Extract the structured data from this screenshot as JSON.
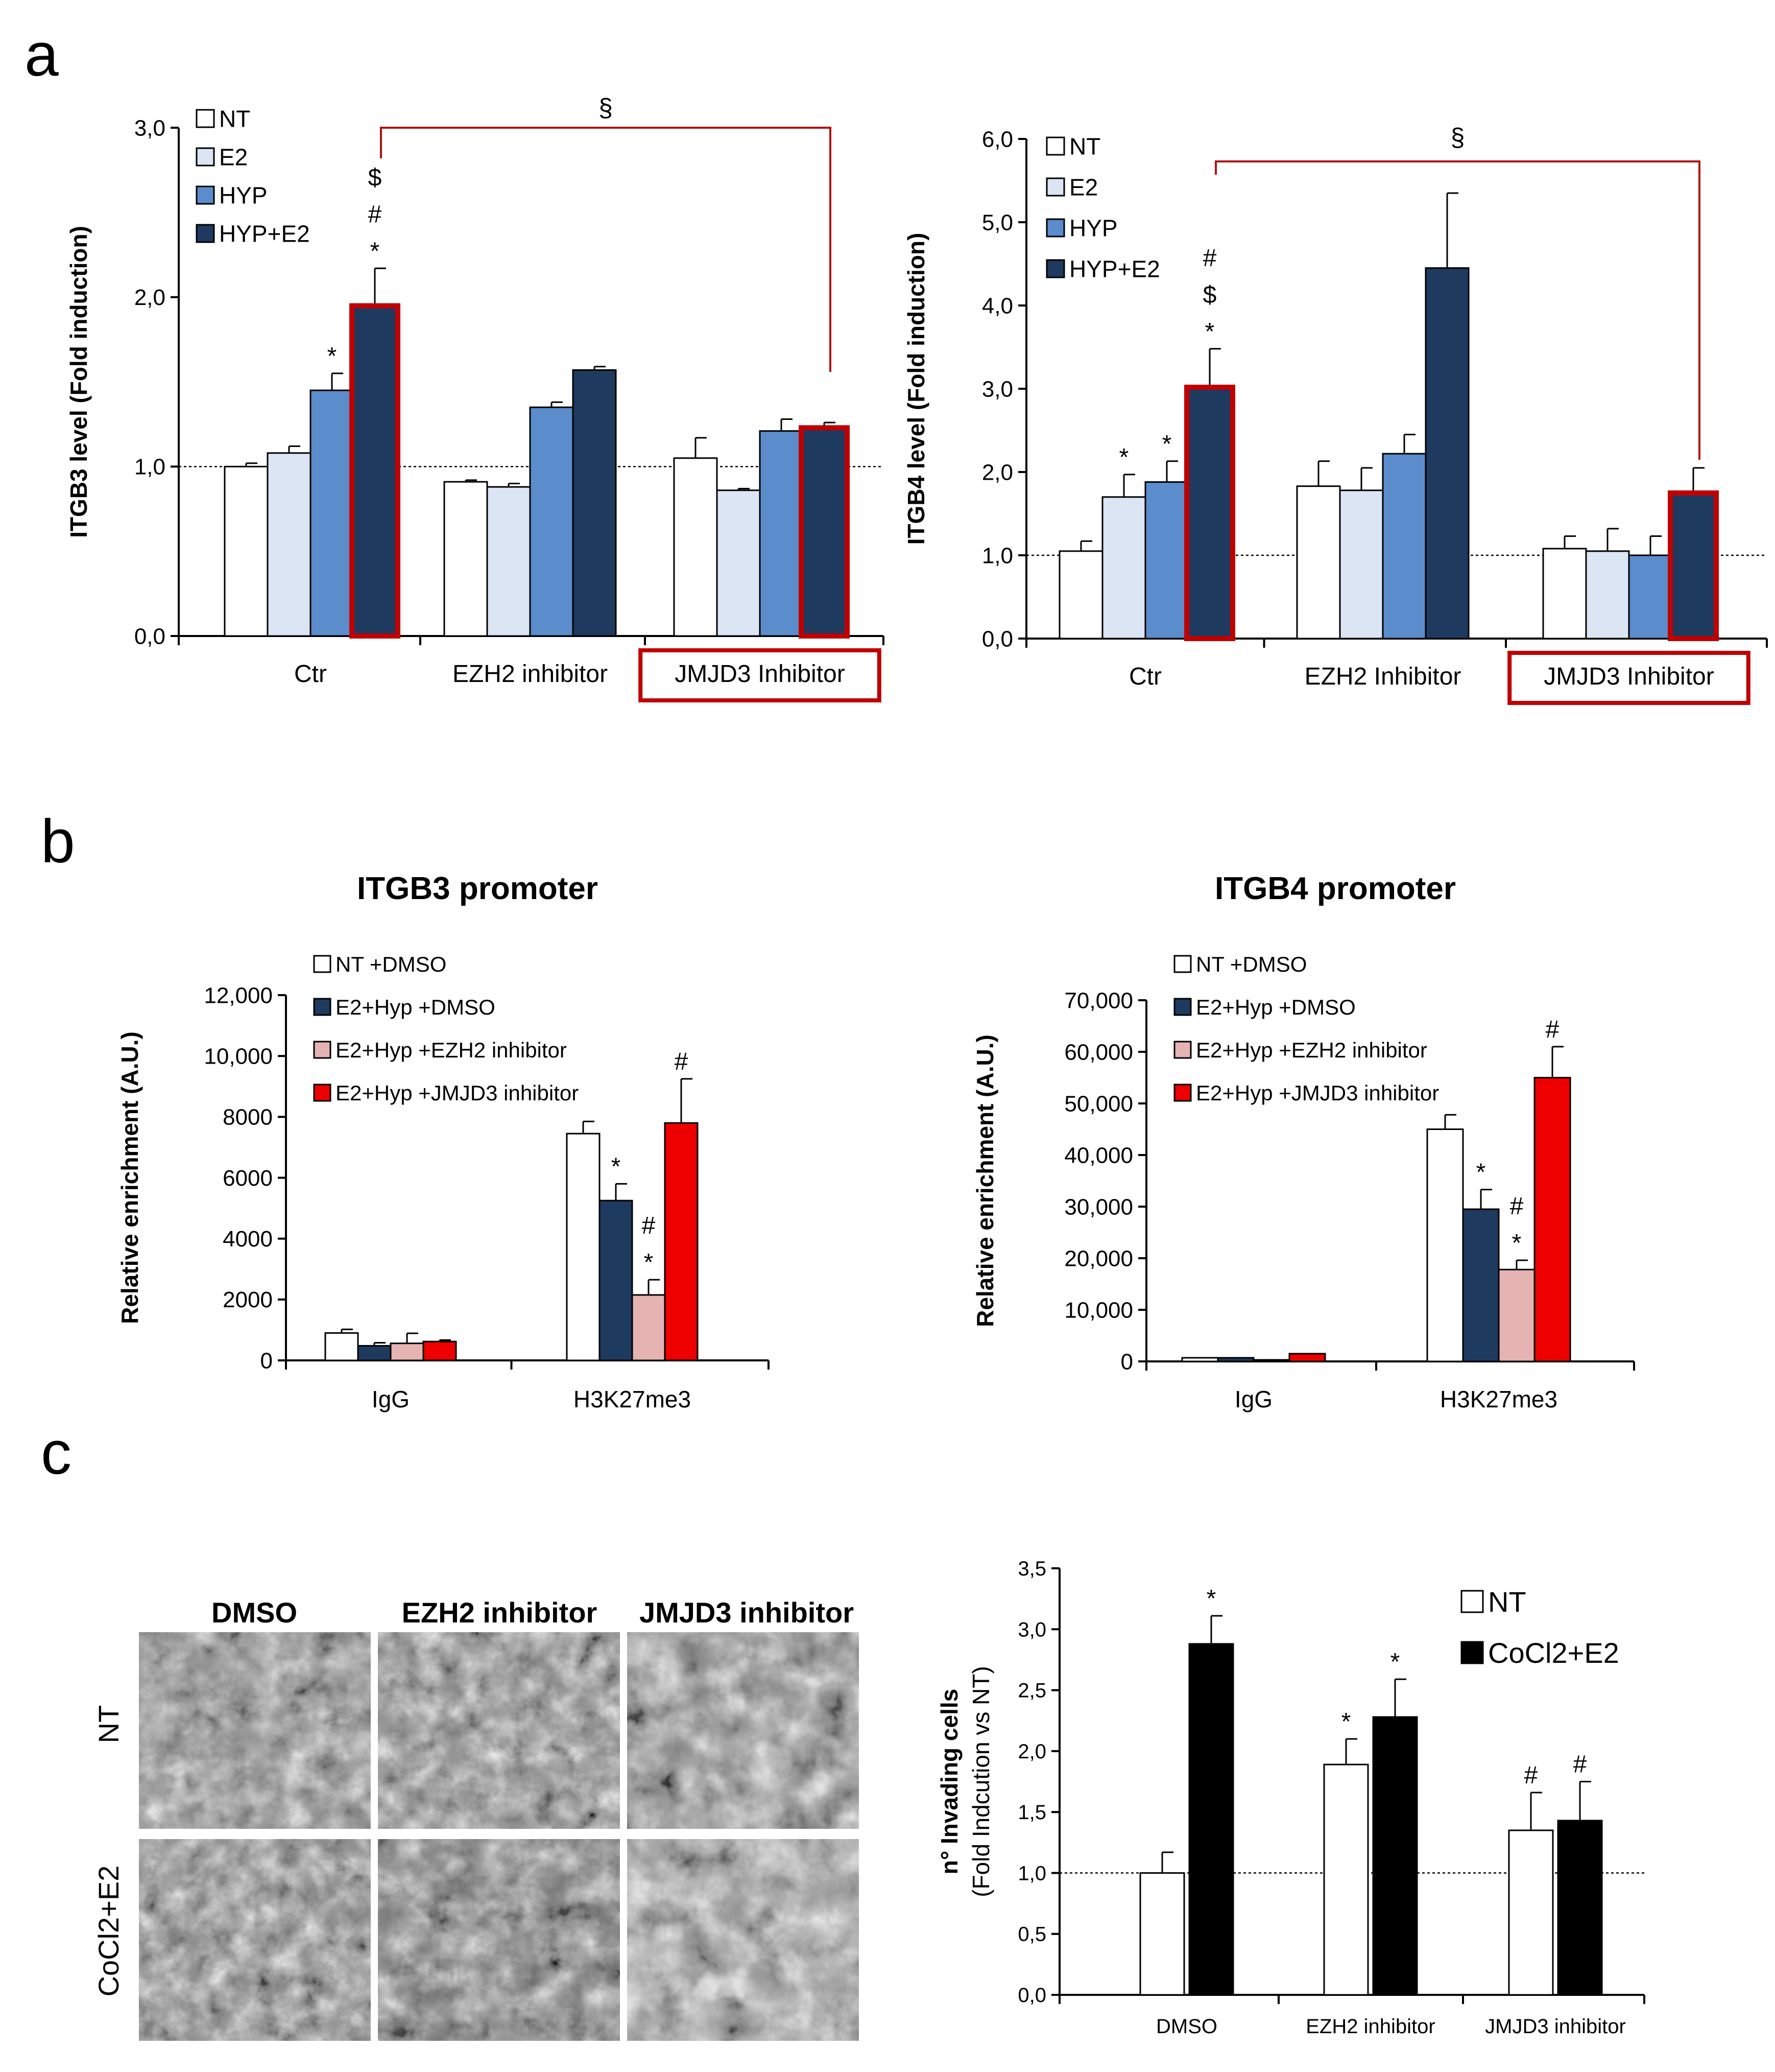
{
  "figure": {
    "panel_labels": [
      "a",
      "b",
      "c"
    ]
  },
  "colors": {
    "NT": "#ffffff",
    "E2": "#dbe5f3",
    "HYP": "#5b8ccb",
    "HYP+E2": "#1f3a5f",
    "NT +DMSO": "#ffffff",
    "E2+Hyp +DMSO": "#1f3a5f",
    "E2+Hyp +EZH2 inhibitor": "#e6b3b3",
    "E2+Hyp +JMJD3 inhibitor": "#ee0000",
    "CoCl2+E2": "#000000",
    "highlight": "#c00000",
    "bracket": "#b01010"
  },
  "chart_data": [
    {
      "id": "a1",
      "type": "bar",
      "ylabel": "ITGB3 level (Fold induction)",
      "ylim": [
        0,
        3
      ],
      "yticks": [
        0,
        1,
        2,
        3
      ],
      "ytick_labels": [
        "0,0",
        "1,0",
        "2,0",
        "3,0"
      ],
      "reference_line": 1.0,
      "categories": [
        "Ctr",
        "EZH2 inhibitor",
        "JMJD3 Inhibitor"
      ],
      "series": [
        {
          "name": "NT",
          "values": [
            1.0,
            0.91,
            1.05
          ],
          "errors": [
            0.02,
            0.01,
            0.12
          ]
        },
        {
          "name": "E2",
          "values": [
            1.08,
            0.88,
            0.86
          ],
          "errors": [
            0.04,
            0.02,
            0.01
          ]
        },
        {
          "name": "HYP",
          "values": [
            1.45,
            1.35,
            1.21
          ],
          "errors": [
            0.1,
            0.03,
            0.07
          ]
        },
        {
          "name": "HYP+E2",
          "values": [
            1.94,
            1.57,
            1.22
          ],
          "errors": [
            0.23,
            0.02,
            0.04
          ]
        }
      ],
      "annotations": [
        {
          "category": 0,
          "series": 2,
          "text": "*"
        },
        {
          "category": 0,
          "series": 3,
          "lines": [
            "$",
            "#",
            "*"
          ]
        }
      ],
      "highlighted_bars": [
        [
          0,
          3
        ],
        [
          2,
          3
        ]
      ],
      "highlighted_category_labels": [
        2
      ],
      "bracket": {
        "from": [
          0,
          3
        ],
        "to": [
          2,
          3
        ],
        "label": "§"
      }
    },
    {
      "id": "a2",
      "type": "bar",
      "ylabel": "ITGB4 level (Fold induction)",
      "ylim": [
        0,
        6
      ],
      "yticks": [
        0,
        1,
        2,
        3,
        4,
        5,
        6
      ],
      "ytick_labels": [
        "0,0",
        "1,0",
        "2,0",
        "3,0",
        "4,0",
        "5,0",
        "6,0"
      ],
      "reference_line": 1.0,
      "categories": [
        "Ctr",
        "EZH2 Inhibitor",
        "JMJD3 Inhibitor"
      ],
      "series": [
        {
          "name": "NT",
          "values": [
            1.05,
            1.83,
            1.08
          ],
          "errors": [
            0.12,
            0.3,
            0.15
          ]
        },
        {
          "name": "E2",
          "values": [
            1.7,
            1.78,
            1.05
          ],
          "errors": [
            0.27,
            0.27,
            0.27
          ]
        },
        {
          "name": "HYP",
          "values": [
            1.88,
            2.22,
            1.0
          ],
          "errors": [
            0.25,
            0.23,
            0.23
          ]
        },
        {
          "name": "HYP+E2",
          "values": [
            3.0,
            4.45,
            1.73
          ],
          "errors": [
            0.48,
            0.9,
            0.32
          ]
        }
      ],
      "annotations": [
        {
          "category": 0,
          "series": 1,
          "text": "*"
        },
        {
          "category": 0,
          "series": 2,
          "text": "*"
        },
        {
          "category": 0,
          "series": 3,
          "lines": [
            "#",
            "$",
            "*"
          ]
        }
      ],
      "highlighted_bars": [
        [
          0,
          3
        ],
        [
          2,
          3
        ]
      ],
      "highlighted_category_labels": [
        2
      ],
      "bracket": {
        "from": [
          0,
          3
        ],
        "to": [
          2,
          3
        ],
        "label": "§"
      }
    },
    {
      "id": "b1",
      "type": "bar",
      "title": "ITGB3 promoter",
      "ylabel": "Relative enrichment (A.U.)",
      "ylim": [
        0,
        12000
      ],
      "yticks": [
        0,
        2000,
        4000,
        6000,
        8000,
        10000,
        12000
      ],
      "ytick_labels": [
        "0",
        "2000",
        "4000",
        "6000",
        "8000",
        "10,000",
        "12,000"
      ],
      "categories": [
        "IgG",
        "H3K27me3"
      ],
      "series": [
        {
          "name": "NT +DMSO",
          "values": [
            900,
            7450
          ],
          "errors": [
            120,
            400
          ]
        },
        {
          "name": "E2+Hyp +DMSO",
          "values": [
            480,
            5250
          ],
          "errors": [
            100,
            550
          ]
        },
        {
          "name": "E2+Hyp +EZH2 inhibitor",
          "values": [
            560,
            2150
          ],
          "errors": [
            330,
            500
          ]
        },
        {
          "name": "E2+Hyp +JMJD3 inhibitor",
          "values": [
            620,
            7800
          ],
          "errors": [
            50,
            1450
          ]
        }
      ],
      "annotations": [
        {
          "category": 1,
          "series": 1,
          "text": "*"
        },
        {
          "category": 1,
          "series": 2,
          "lines": [
            "#",
            "*"
          ]
        },
        {
          "category": 1,
          "series": 3,
          "text": "#"
        }
      ]
    },
    {
      "id": "b2",
      "type": "bar",
      "title": "ITGB4 promoter",
      "ylabel": "Relative enrichment (A.U.)",
      "ylim": [
        0,
        70000
      ],
      "yticks": [
        0,
        10000,
        20000,
        30000,
        40000,
        50000,
        60000,
        70000
      ],
      "ytick_labels": [
        "0",
        "10,000",
        "20,000",
        "30,000",
        "40,000",
        "50,000",
        "60,000",
        "70,000"
      ],
      "categories": [
        "IgG",
        "H3K27me3"
      ],
      "series": [
        {
          "name": "NT +DMSO",
          "values": [
            700,
            45000
          ],
          "errors": [
            0,
            2800
          ]
        },
        {
          "name": "E2+Hyp +DMSO",
          "values": [
            700,
            29500
          ],
          "errors": [
            0,
            3800
          ]
        },
        {
          "name": "E2+Hyp +EZH2 inhibitor",
          "values": [
            300,
            17800
          ],
          "errors": [
            0,
            1800
          ]
        },
        {
          "name": "E2+Hyp +JMJD3 inhibitor",
          "values": [
            1500,
            55000
          ],
          "errors": [
            0,
            6000
          ]
        }
      ],
      "annotations": [
        {
          "category": 1,
          "series": 1,
          "text": "*"
        },
        {
          "category": 1,
          "series": 2,
          "lines": [
            "#",
            "*"
          ]
        },
        {
          "category": 1,
          "series": 3,
          "text": "#"
        }
      ]
    },
    {
      "id": "c1",
      "type": "bar",
      "ylabel_lines": [
        "n° Invading cells",
        "(Fold Indcution vs NT)"
      ],
      "ylim": [
        0,
        3.5
      ],
      "yticks": [
        0,
        0.5,
        1,
        1.5,
        2,
        2.5,
        3,
        3.5
      ],
      "ytick_labels": [
        "0,0",
        "0,5",
        "1,0",
        "1,5",
        "2,0",
        "2,5",
        "3,0",
        "3,5"
      ],
      "reference_line": 1.0,
      "categories": [
        "DMSO",
        "EZH2 inhibitor",
        "JMJD3 inhibitor"
      ],
      "series": [
        {
          "name": "NT",
          "values": [
            1.0,
            1.89,
            1.35
          ],
          "errors": [
            0.17,
            0.21,
            0.31
          ]
        },
        {
          "name": "CoCl2+E2",
          "values": [
            2.88,
            2.28,
            1.43
          ],
          "errors": [
            0.23,
            0.31,
            0.32
          ]
        }
      ],
      "annotations": [
        {
          "category": 0,
          "series": 1,
          "text": "*"
        },
        {
          "category": 1,
          "series": 0,
          "text": "*"
        },
        {
          "category": 1,
          "series": 1,
          "text": "*"
        },
        {
          "category": 2,
          "series": 0,
          "text": "#"
        },
        {
          "category": 2,
          "series": 1,
          "text": "#"
        }
      ]
    }
  ],
  "micrographs": {
    "columns": [
      "DMSO",
      "EZH2 inhibitor",
      "JMJD3 inhibitor"
    ],
    "rows": [
      "NT",
      "CoCl2+E2"
    ]
  }
}
